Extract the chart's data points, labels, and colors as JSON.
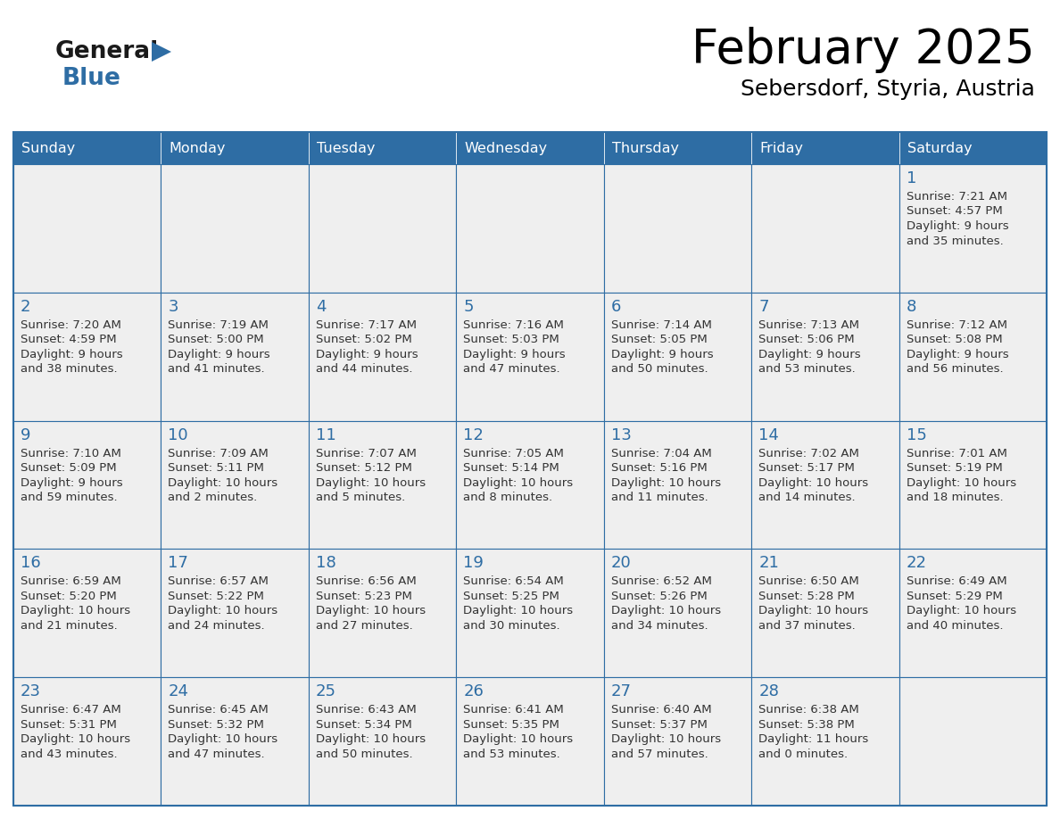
{
  "title": "February 2025",
  "subtitle": "Sebersdorf, Styria, Austria",
  "header_bg": "#2E6DA4",
  "header_text": "#FFFFFF",
  "cell_bg": "#EFEFEF",
  "border_color": "#2E6DA4",
  "day_number_color": "#2E6DA4",
  "text_color": "#333333",
  "days_of_week": [
    "Sunday",
    "Monday",
    "Tuesday",
    "Wednesday",
    "Thursday",
    "Friday",
    "Saturday"
  ],
  "weeks": [
    [
      null,
      null,
      null,
      null,
      null,
      null,
      1
    ],
    [
      2,
      3,
      4,
      5,
      6,
      7,
      8
    ],
    [
      9,
      10,
      11,
      12,
      13,
      14,
      15
    ],
    [
      16,
      17,
      18,
      19,
      20,
      21,
      22
    ],
    [
      23,
      24,
      25,
      26,
      27,
      28,
      null
    ]
  ],
  "cell_data": {
    "1": {
      "sunrise": "7:21 AM",
      "sunset": "4:57 PM",
      "daylight_a": "9 hours",
      "daylight_b": "and 35 minutes."
    },
    "2": {
      "sunrise": "7:20 AM",
      "sunset": "4:59 PM",
      "daylight_a": "9 hours",
      "daylight_b": "and 38 minutes."
    },
    "3": {
      "sunrise": "7:19 AM",
      "sunset": "5:00 PM",
      "daylight_a": "9 hours",
      "daylight_b": "and 41 minutes."
    },
    "4": {
      "sunrise": "7:17 AM",
      "sunset": "5:02 PM",
      "daylight_a": "9 hours",
      "daylight_b": "and 44 minutes."
    },
    "5": {
      "sunrise": "7:16 AM",
      "sunset": "5:03 PM",
      "daylight_a": "9 hours",
      "daylight_b": "and 47 minutes."
    },
    "6": {
      "sunrise": "7:14 AM",
      "sunset": "5:05 PM",
      "daylight_a": "9 hours",
      "daylight_b": "and 50 minutes."
    },
    "7": {
      "sunrise": "7:13 AM",
      "sunset": "5:06 PM",
      "daylight_a": "9 hours",
      "daylight_b": "and 53 minutes."
    },
    "8": {
      "sunrise": "7:12 AM",
      "sunset": "5:08 PM",
      "daylight_a": "9 hours",
      "daylight_b": "and 56 minutes."
    },
    "9": {
      "sunrise": "7:10 AM",
      "sunset": "5:09 PM",
      "daylight_a": "9 hours",
      "daylight_b": "and 59 minutes."
    },
    "10": {
      "sunrise": "7:09 AM",
      "sunset": "5:11 PM",
      "daylight_a": "10 hours",
      "daylight_b": "and 2 minutes."
    },
    "11": {
      "sunrise": "7:07 AM",
      "sunset": "5:12 PM",
      "daylight_a": "10 hours",
      "daylight_b": "and 5 minutes."
    },
    "12": {
      "sunrise": "7:05 AM",
      "sunset": "5:14 PM",
      "daylight_a": "10 hours",
      "daylight_b": "and 8 minutes."
    },
    "13": {
      "sunrise": "7:04 AM",
      "sunset": "5:16 PM",
      "daylight_a": "10 hours",
      "daylight_b": "and 11 minutes."
    },
    "14": {
      "sunrise": "7:02 AM",
      "sunset": "5:17 PM",
      "daylight_a": "10 hours",
      "daylight_b": "and 14 minutes."
    },
    "15": {
      "sunrise": "7:01 AM",
      "sunset": "5:19 PM",
      "daylight_a": "10 hours",
      "daylight_b": "and 18 minutes."
    },
    "16": {
      "sunrise": "6:59 AM",
      "sunset": "5:20 PM",
      "daylight_a": "10 hours",
      "daylight_b": "and 21 minutes."
    },
    "17": {
      "sunrise": "6:57 AM",
      "sunset": "5:22 PM",
      "daylight_a": "10 hours",
      "daylight_b": "and 24 minutes."
    },
    "18": {
      "sunrise": "6:56 AM",
      "sunset": "5:23 PM",
      "daylight_a": "10 hours",
      "daylight_b": "and 27 minutes."
    },
    "19": {
      "sunrise": "6:54 AM",
      "sunset": "5:25 PM",
      "daylight_a": "10 hours",
      "daylight_b": "and 30 minutes."
    },
    "20": {
      "sunrise": "6:52 AM",
      "sunset": "5:26 PM",
      "daylight_a": "10 hours",
      "daylight_b": "and 34 minutes."
    },
    "21": {
      "sunrise": "6:50 AM",
      "sunset": "5:28 PM",
      "daylight_a": "10 hours",
      "daylight_b": "and 37 minutes."
    },
    "22": {
      "sunrise": "6:49 AM",
      "sunset": "5:29 PM",
      "daylight_a": "10 hours",
      "daylight_b": "and 40 minutes."
    },
    "23": {
      "sunrise": "6:47 AM",
      "sunset": "5:31 PM",
      "daylight_a": "10 hours",
      "daylight_b": "and 43 minutes."
    },
    "24": {
      "sunrise": "6:45 AM",
      "sunset": "5:32 PM",
      "daylight_a": "10 hours",
      "daylight_b": "and 47 minutes."
    },
    "25": {
      "sunrise": "6:43 AM",
      "sunset": "5:34 PM",
      "daylight_a": "10 hours",
      "daylight_b": "and 50 minutes."
    },
    "26": {
      "sunrise": "6:41 AM",
      "sunset": "5:35 PM",
      "daylight_a": "10 hours",
      "daylight_b": "and 53 minutes."
    },
    "27": {
      "sunrise": "6:40 AM",
      "sunset": "5:37 PM",
      "daylight_a": "10 hours",
      "daylight_b": "and 57 minutes."
    },
    "28": {
      "sunrise": "6:38 AM",
      "sunset": "5:38 PM",
      "daylight_a": "11 hours",
      "daylight_b": "and 0 minutes."
    }
  },
  "logo_color_general": "#1a1a1a",
  "logo_color_blue": "#2E6DA4",
  "logo_triangle_color": "#2E6DA4",
  "fig_width": 11.88,
  "fig_height": 9.18,
  "dpi": 100
}
